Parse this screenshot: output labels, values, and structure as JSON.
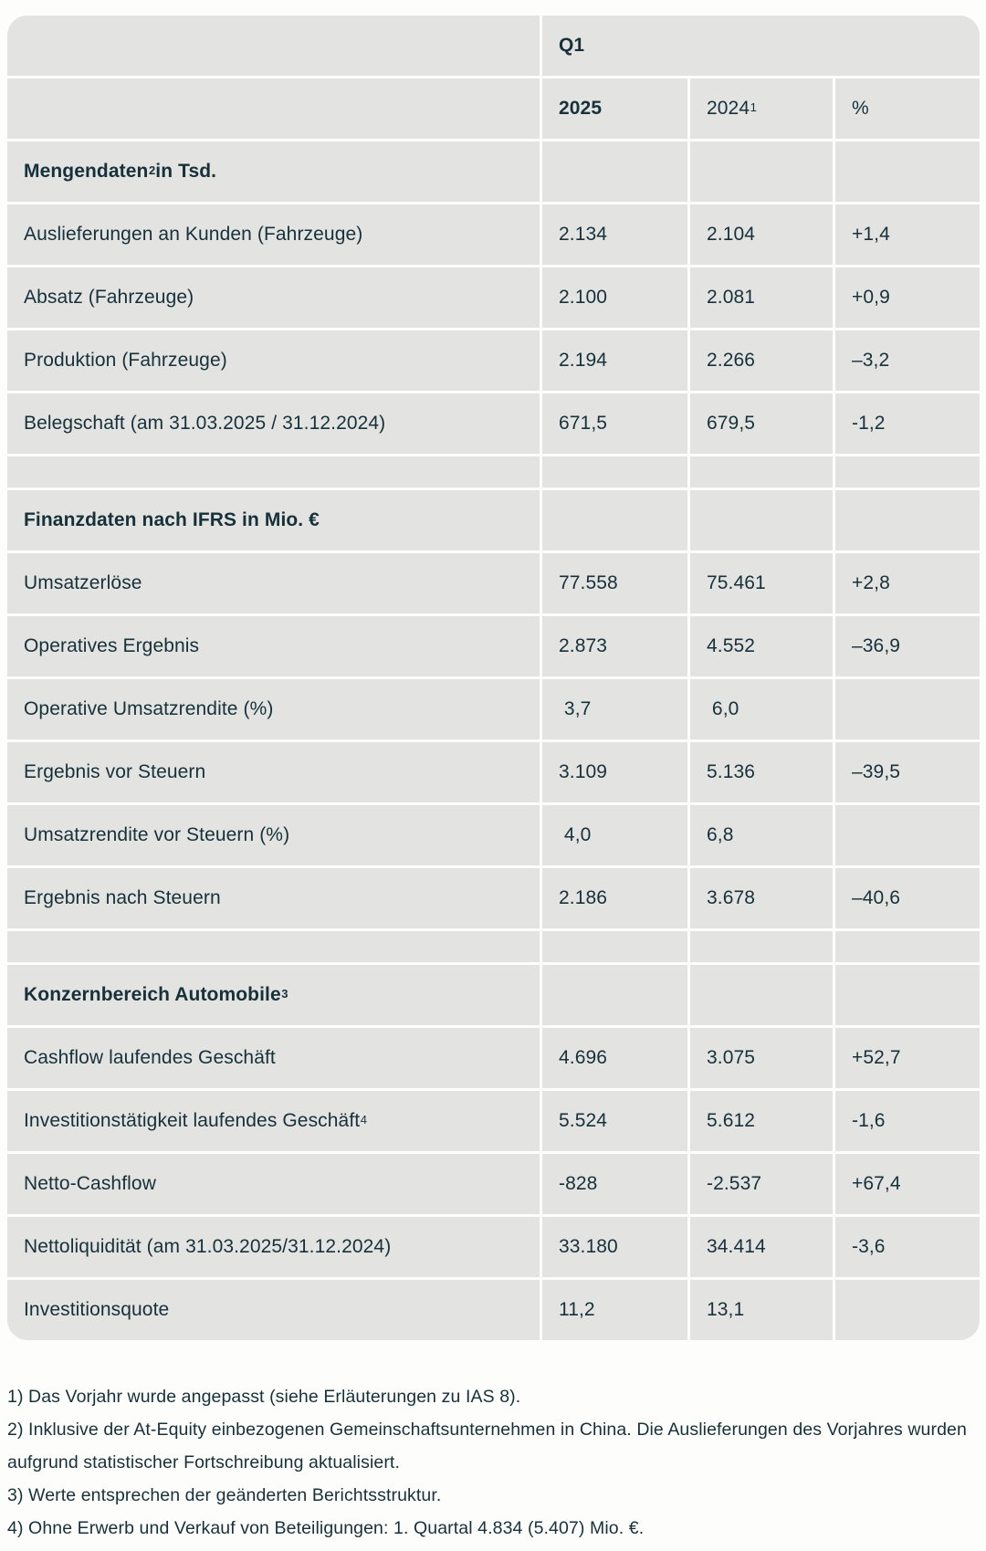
{
  "table": {
    "q1_label": "Q1",
    "columns": {
      "y2025": "2025",
      "y2024": {
        "pre": "2024",
        "sup": "1"
      },
      "pct": "%"
    },
    "rows": [
      {
        "type": "section",
        "label": {
          "pre": "Mengendaten",
          "sup": "2",
          "post": " in Tsd."
        }
      },
      {
        "type": "data",
        "label": {
          "pre": "Auslieferungen an Kunden (Fahrzeuge)"
        },
        "y2025": "2.134",
        "y2024": "2.104",
        "pct": "+1,4"
      },
      {
        "type": "data",
        "label": {
          "pre": "Absatz (Fahrzeuge)"
        },
        "y2025": "2.100",
        "y2024": "2.081",
        "pct": "+0,9"
      },
      {
        "type": "data",
        "label": {
          "pre": "Produktion (Fahrzeuge)"
        },
        "y2025": "2.194",
        "y2024": "2.266",
        "pct": "–3,2"
      },
      {
        "type": "data",
        "label": {
          "pre": "Belegschaft (am 31.03.2025 / 31.12.2024)"
        },
        "y2025": "671,5",
        "y2024": "679,5",
        "pct": "-1,2"
      },
      {
        "type": "spacer"
      },
      {
        "type": "section",
        "label": {
          "pre": "Finanzdaten nach IFRS in Mio. €"
        }
      },
      {
        "type": "data",
        "label": {
          "pre": "Umsatzerlöse"
        },
        "y2025": "77.558",
        "y2024": "75.461",
        "pct": "+2,8"
      },
      {
        "type": "data",
        "label": {
          "pre": "Operatives Ergebnis"
        },
        "y2025": "2.873",
        "y2024": "4.552",
        "pct": "–36,9"
      },
      {
        "type": "data",
        "label": {
          "pre": "Operative Umsatzrendite (%)"
        },
        "y2025": " 3,7",
        "y2024": " 6,0",
        "pct": ""
      },
      {
        "type": "data",
        "label": {
          "pre": "Ergebnis vor Steuern"
        },
        "y2025": "3.109",
        "y2024": "5.136",
        "pct": "–39,5"
      },
      {
        "type": "data",
        "label": {
          "pre": "Umsatzrendite vor Steuern (%)"
        },
        "y2025": " 4,0",
        "y2024": "6,8",
        "pct": ""
      },
      {
        "type": "data",
        "label": {
          "pre": "Ergebnis nach Steuern"
        },
        "y2025": "2.186",
        "y2024": "3.678",
        "pct": "–40,6"
      },
      {
        "type": "spacer"
      },
      {
        "type": "section",
        "label": {
          "pre": "Konzernbereich Automobile ",
          "sup": "3"
        }
      },
      {
        "type": "data",
        "label": {
          "pre": "Cashflow laufendes Geschäft"
        },
        "y2025": "4.696",
        "y2024": "3.075",
        "pct": "+52,7"
      },
      {
        "type": "data",
        "label": {
          "pre": "Investitionstätigkeit laufendes Geschäft",
          "sup": "4"
        },
        "y2025": "5.524",
        "y2024": "5.612",
        "pct": "-1,6"
      },
      {
        "type": "data",
        "label": {
          "pre": "Netto-Cashflow"
        },
        "y2025": "-828",
        "y2024": "-2.537",
        "pct": "+67,4"
      },
      {
        "type": "data",
        "label": {
          "pre": "Nettoliquidität (am 31.03.2025/31.12.2024)"
        },
        "y2025": "33.180",
        "y2024": "34.414",
        "pct": "-3,6"
      },
      {
        "type": "data",
        "label": {
          "pre": "Investitionsquote"
        },
        "y2025": "11,2",
        "y2024": "13,1",
        "pct": ""
      }
    ]
  },
  "footnotes": [
    "1) Das Vorjahr wurde angepasst (siehe Erläuterungen zu IAS 8).",
    "2) Inklusive der At-Equity einbezogenen Gemeinschaftsunternehmen in China. Die Auslieferungen des Vorjahres wurden aufgrund statistischer Fortschreibung aktualisiert.",
    "3) Werte entsprechen der geänderten Berichtsstruktur.",
    "4) Ohne Erwerb und Verkauf von Beteiligungen: 1. Quartal 4.834 (5.407) Mio. €."
  ],
  "colors": {
    "page_background": "#fdfdfc",
    "cell_background": "#e3e3e1",
    "text": "#17313a"
  }
}
